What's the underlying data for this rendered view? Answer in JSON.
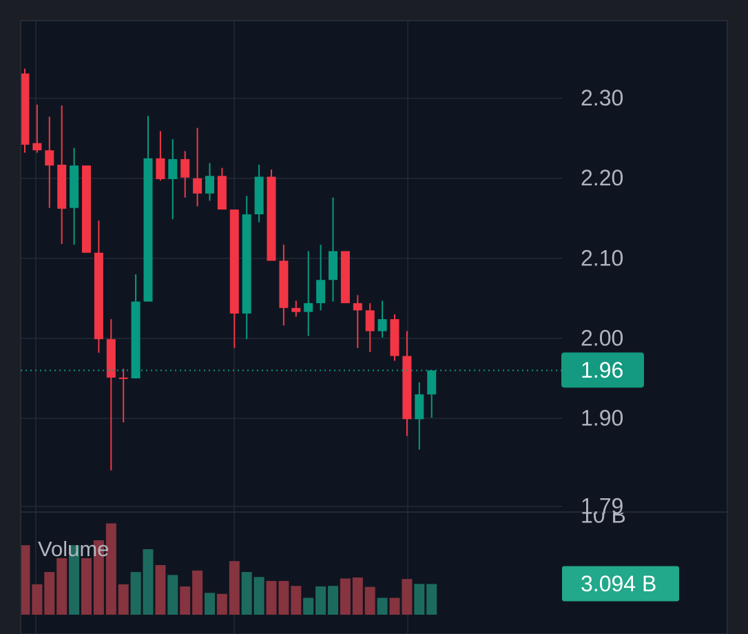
{
  "chart_data": {
    "type": "candlestick",
    "open": [
      2.331,
      2.244,
      2.235,
      2.217,
      2.163,
      2.216,
      2.107,
      1.999,
      1.951,
      1.95,
      2.046,
      2.225,
      2.199,
      2.224,
      2.2,
      2.181,
      2.203,
      2.161,
      2.031,
      2.155,
      2.202,
      2.097,
      2.038,
      2.033,
      2.044,
      2.073,
      2.109,
      2.044,
      2.035,
      2.009,
      2.024,
      1.978,
      1.899,
      1.93
    ],
    "high": [
      2.337,
      2.292,
      2.277,
      2.291,
      2.238,
      2.216,
      2.147,
      2.024,
      1.962,
      2.08,
      2.278,
      2.259,
      2.249,
      2.234,
      2.263,
      2.219,
      2.213,
      2.161,
      2.178,
      2.217,
      2.211,
      2.117,
      2.047,
      2.109,
      2.117,
      2.176,
      2.109,
      2.054,
      2.044,
      2.047,
      2.03,
      2.009,
      1.945,
      1.96
    ],
    "low": [
      2.232,
      2.232,
      2.163,
      2.118,
      2.117,
      2.107,
      1.982,
      1.835,
      1.895,
      1.95,
      2.046,
      2.197,
      2.149,
      2.176,
      2.165,
      2.172,
      2.161,
      1.988,
      1.999,
      2.145,
      2.097,
      2.016,
      2.027,
      2.003,
      2.035,
      2.046,
      2.044,
      1.988,
      1.983,
      2.001,
      1.972,
      1.878,
      1.861,
      1.901
    ],
    "close": [
      2.242,
      2.235,
      2.216,
      2.162,
      2.216,
      2.107,
      1.999,
      1.951,
      1.95,
      2.046,
      2.225,
      2.199,
      2.224,
      2.201,
      2.181,
      2.203,
      2.161,
      2.031,
      2.155,
      2.202,
      2.097,
      2.038,
      2.033,
      2.044,
      2.073,
      2.109,
      2.044,
      2.035,
      2.009,
      2.024,
      1.978,
      1.899,
      1.93,
      1.96
    ],
    "up_color": "#089981",
    "down_color": "#f23645",
    "ylim": [
      1.783,
      2.397
    ],
    "yticks": [
      {
        "value": 2.3,
        "label": "2.30"
      },
      {
        "value": 2.2,
        "label": "2.20"
      },
      {
        "value": 2.1,
        "label": "2.10"
      },
      {
        "value": 2.0,
        "label": "2.00"
      },
      {
        "value": 1.9,
        "label": "1.90"
      },
      1.79
    ],
    "grid": true,
    "last_price": 1.96,
    "volume": {
      "label": "Volume",
      "values": [
        7.0,
        3.06,
        4.3,
        5.7,
        7.0,
        5.7,
        7.5,
        9.2,
        3.06,
        4.3,
        6.6,
        5.0,
        4.0,
        2.85,
        4.45,
        2.2,
        2.1,
        5.4,
        4.3,
        3.8,
        3.4,
        3.4,
        2.9,
        1.7,
        2.85,
        2.9,
        3.65,
        3.75,
        2.8,
        1.7,
        1.7,
        3.6,
        3.1,
        3.094
      ],
      "up_color": "#1d6b5f",
      "down_color": "#86343f",
      "y2lim": [
        0,
        10
      ],
      "y2ticks": [
        {
          "value": 10,
          "label": "10 B"
        }
      ],
      "last": {
        "value": 3.094,
        "label": "3.094 B"
      }
    }
  }
}
